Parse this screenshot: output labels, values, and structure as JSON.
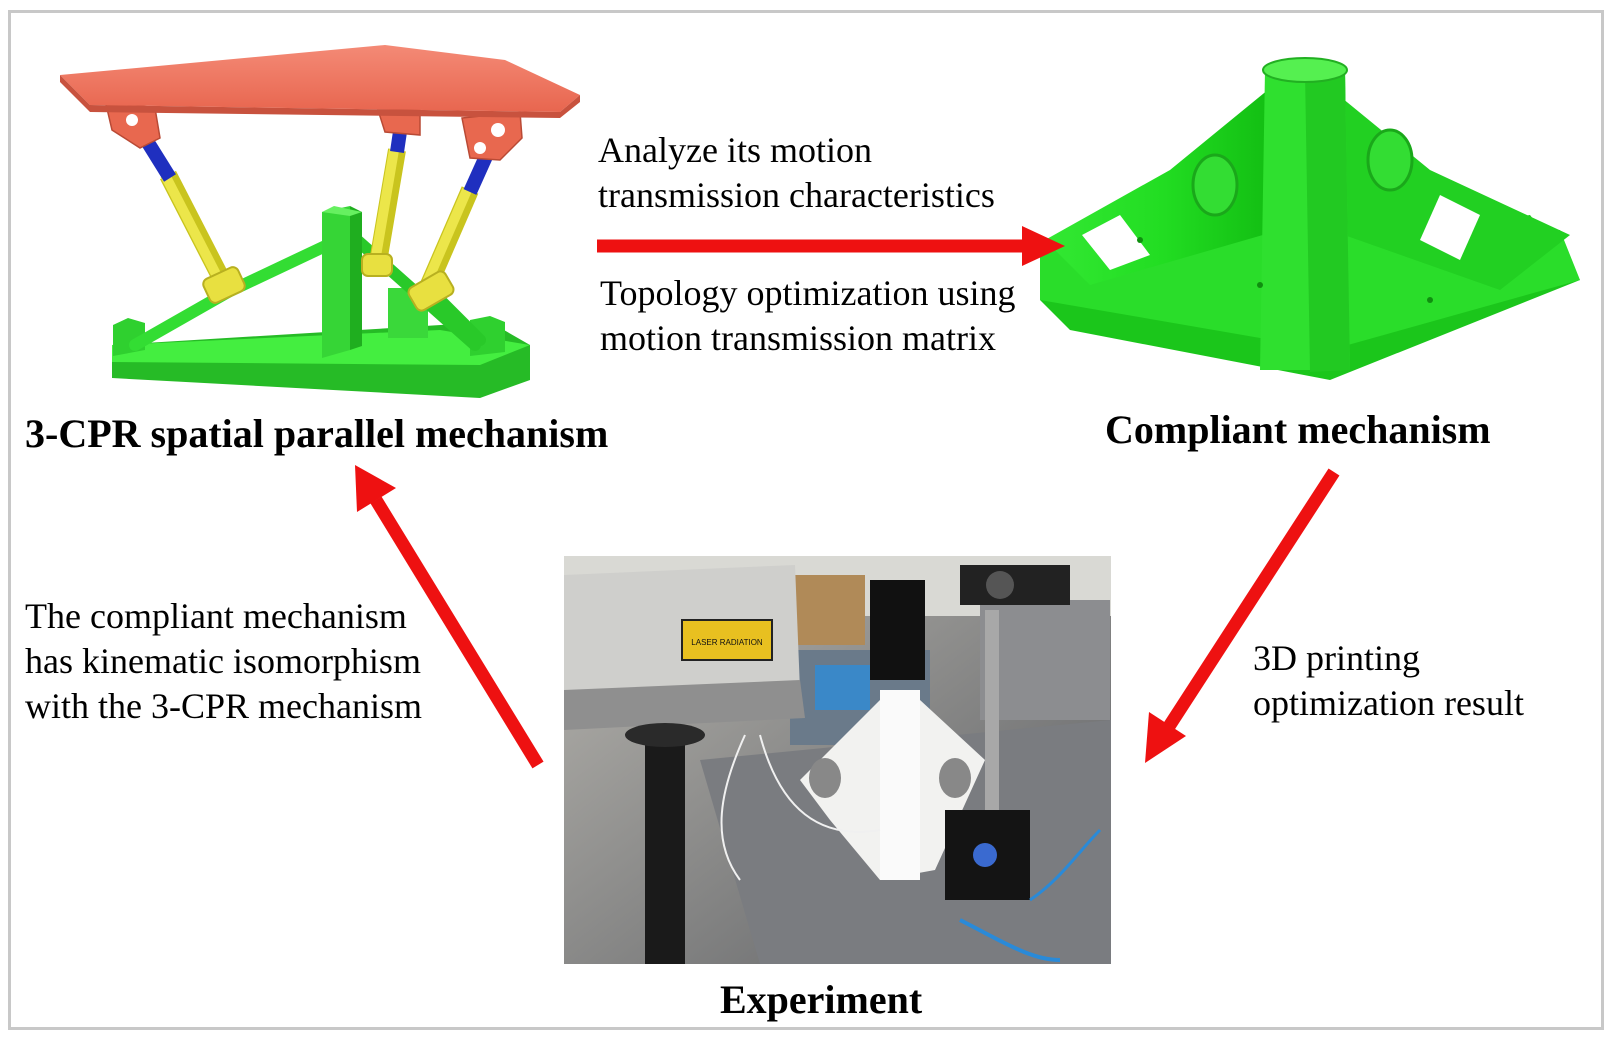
{
  "figure": {
    "titles": {
      "parallel": "3-CPR spatial parallel mechanism",
      "compliant": "Compliant mechanism",
      "experiment": "Experiment"
    },
    "arrow_labels": {
      "analyze": [
        "Analyze its motion",
        "transmission characteristics"
      ],
      "topology": [
        "Topology optimization using",
        "motion transmission matrix"
      ],
      "printing": [
        "3D printing",
        "optimization result"
      ],
      "isomorphism": [
        "The compliant mechanism",
        "has kinematic isomorphism",
        "with the 3-CPR mechanism"
      ]
    },
    "photo_text": {
      "laser_warning": "LASER RADIATION"
    },
    "colors": {
      "arrow": "#ee1111",
      "platform": "#f07560",
      "base": "#33dd33",
      "link": "#e8e040",
      "joint": "#2233cc"
    }
  }
}
